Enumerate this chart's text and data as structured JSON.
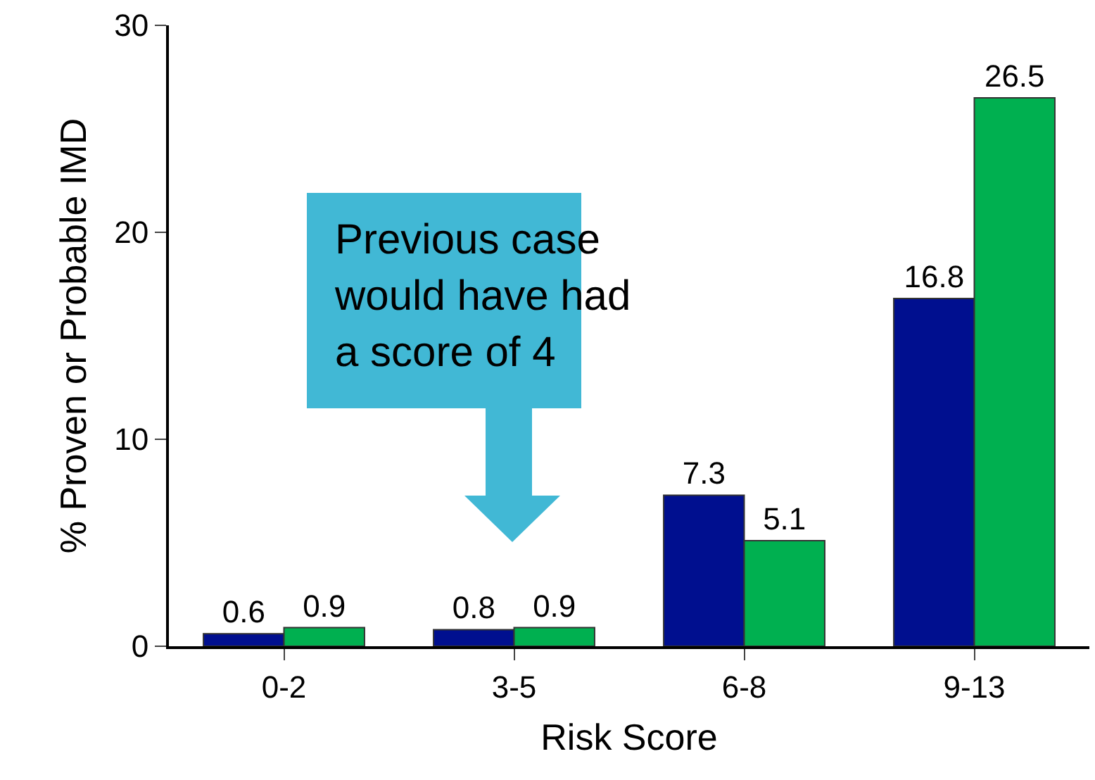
{
  "chart_data": {
    "type": "bar",
    "xlabel": "Risk Score",
    "ylabel": "% Proven or Probable IMD",
    "categories": [
      "0-2",
      "3-5",
      "6-8",
      "9-13"
    ],
    "series": [
      {
        "color": "#000f8f",
        "values": [
          0.6,
          0.8,
          7.3,
          16.8
        ]
      },
      {
        "color": "#00b050",
        "values": [
          0.9,
          0.9,
          5.1,
          26.5
        ]
      }
    ],
    "ylim": [
      0,
      30
    ],
    "yticks": [
      0,
      10,
      20,
      30
    ],
    "grid": false,
    "data_labels": true,
    "annotations": [
      "Previous case\nwould have had\na score of 4"
    ]
  }
}
